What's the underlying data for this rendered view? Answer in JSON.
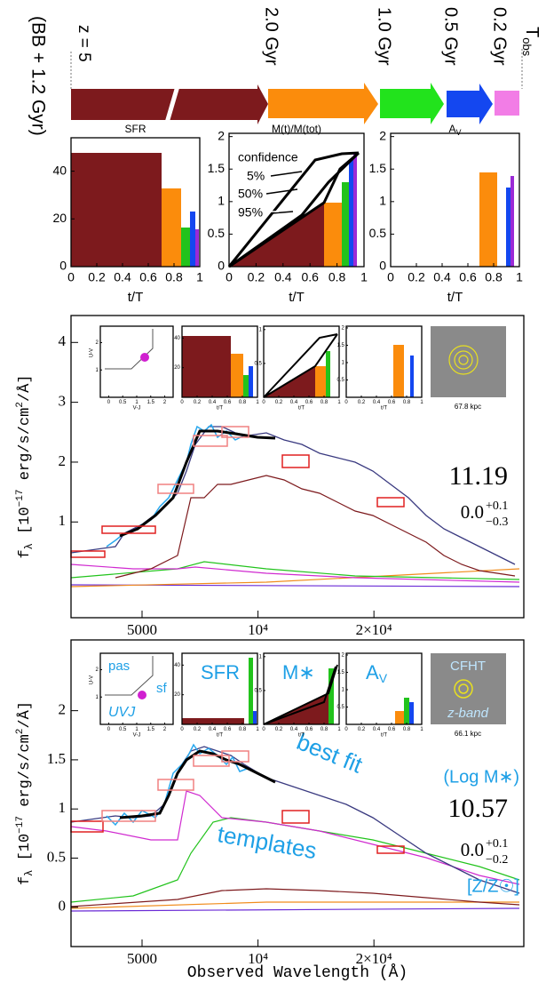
{
  "timeline": {
    "labels": [
      "(BB + 1.2 Gyr)",
      "z = 5",
      "2.0 Gyr",
      "1.0 Gyr",
      "0.5 Gyr",
      "0.2 Gyr"
    ],
    "t_obs": "T",
    "t_obs_sub": "obs"
  },
  "top_panels": [
    {
      "title": "SFR",
      "xlim": [
        0,
        1
      ],
      "ylim": [
        0,
        54
      ],
      "xticks": [
        0,
        0.2,
        0.4,
        0.6,
        0.8,
        1
      ],
      "yticks": [
        0,
        20,
        40
      ],
      "xlabel": "t/T"
    },
    {
      "title": "M(t)/M(tot)",
      "xlim": [
        0,
        1
      ],
      "ylim": [
        0,
        2.05
      ],
      "xticks": [
        0,
        0.2,
        0.4,
        0.6,
        0.8,
        1
      ],
      "yticks": [
        0,
        0.5,
        1,
        1.5,
        2
      ],
      "xlabel": "t/T",
      "annotations": [
        "confidence",
        "5%",
        "50%",
        "95%"
      ]
    },
    {
      "title": "A",
      "title_sub": "V",
      "xlim": [
        0,
        1
      ],
      "ylim": [
        0,
        2.05
      ],
      "xticks": [
        0,
        0.2,
        0.4,
        0.6,
        0.8,
        1
      ],
      "yticks": [
        0,
        0.5,
        1,
        1.5,
        2
      ],
      "xlabel": "t/T"
    }
  ],
  "ylabel": [
    "f",
    "λ",
    " [10",
    "−17",
    " erg/s/cm",
    "2",
    "/Å]"
  ],
  "xlabel": "Observed Wavelength (Å)",
  "spectra": [
    {
      "xscale": "log",
      "xlim": [
        3270,
        49000
      ],
      "ylim": [
        -0.6,
        4.45
      ],
      "xticks": [
        5000,
        {
          "value": 10000,
          "label": "10⁴"
        },
        {
          "value": 20000,
          "label": "2×10⁴"
        }
      ],
      "yticks": [
        1,
        2,
        3,
        4
      ],
      "mass": "11.19",
      "metal": "0.0",
      "metal_up": "+0.1",
      "metal_down": "−0.3",
      "insets": [
        {
          "xlim": [
            -0.3,
            2.3
          ],
          "ylim": [
            0,
            2.6
          ],
          "xticks": [
            0,
            0.5,
            1,
            1.5,
            2
          ],
          "yticks": [
            1,
            2
          ],
          "xlabel": "V-J",
          "ylabel": "U-V"
        },
        {
          "xlim": [
            0,
            1
          ],
          "ylim": [
            0,
            48
          ],
          "xticks": [
            0,
            0.2,
            0.4,
            0.6,
            0.8,
            1
          ],
          "yticks": [
            20,
            40
          ],
          "xlabel": "t/T"
        },
        {
          "xlim": [
            0,
            1
          ],
          "ylim": [
            0,
            1.05
          ],
          "xticks": [
            0,
            0.2,
            0.4,
            0.6,
            0.8,
            1
          ],
          "yticks": [
            0.5,
            1
          ],
          "xlabel": "t/T"
        },
        {
          "xlim": [
            0,
            1
          ],
          "ylim": [
            0,
            2.05
          ],
          "xticks": [
            0,
            0.2,
            0.4,
            0.6,
            0.8,
            1
          ],
          "yticks": [
            0.5,
            1,
            1.5,
            2
          ],
          "xlabel": "t/T"
        }
      ],
      "scale": "67.8 kpc"
    },
    {
      "xscale": "log",
      "xlim": [
        3270,
        49000
      ],
      "ylim": [
        -0.4,
        2.72
      ],
      "xticks": [
        5000,
        {
          "value": 10000,
          "label": "10⁴"
        },
        {
          "value": 20000,
          "label": "2×10⁴"
        }
      ],
      "yticks": [
        0,
        0.5,
        1,
        1.5,
        2
      ],
      "mass_label": "(Log M∗)",
      "mass": "10.57",
      "metal": "0.0",
      "metal_up": "+0.1",
      "metal_down": "−0.2",
      "metal_label": "[Z/Z☉]",
      "annotations": [
        "best fit",
        "templates"
      ],
      "inset_labels": [
        "pas",
        "sf",
        "UVJ",
        "SFR",
        "M∗",
        "A",
        "V",
        "CFHT",
        "z-band"
      ],
      "insets": [
        {
          "xlim": [
            -0.3,
            2.3
          ],
          "ylim": [
            0,
            2.6
          ],
          "xticks": [
            0,
            0.5,
            1,
            1.5,
            2
          ],
          "yticks": [
            1,
            2
          ],
          "xlabel": "V-J",
          "ylabel": "U-V"
        },
        {
          "xlim": [
            0,
            1
          ],
          "ylim": [
            0,
            48
          ],
          "xticks": [
            0,
            0.2,
            0.4,
            0.6,
            0.8,
            1
          ],
          "yticks": [
            20,
            40
          ],
          "xlabel": "t/T"
        },
        {
          "xlim": [
            0,
            1
          ],
          "ylim": [
            0,
            1.05
          ],
          "xticks": [
            0,
            0.2,
            0.4,
            0.6,
            0.8,
            1
          ],
          "yticks": [
            0.5,
            1
          ],
          "xlabel": "t/T"
        },
        {
          "xlim": [
            0,
            1
          ],
          "ylim": [
            0,
            2.05
          ],
          "xticks": [
            0,
            0.2,
            0.4,
            0.6,
            0.8,
            1
          ],
          "yticks": [
            0.5,
            1,
            1.5,
            2
          ],
          "xlabel": "t/T"
        }
      ],
      "scale": "66.1 kpc"
    }
  ]
}
